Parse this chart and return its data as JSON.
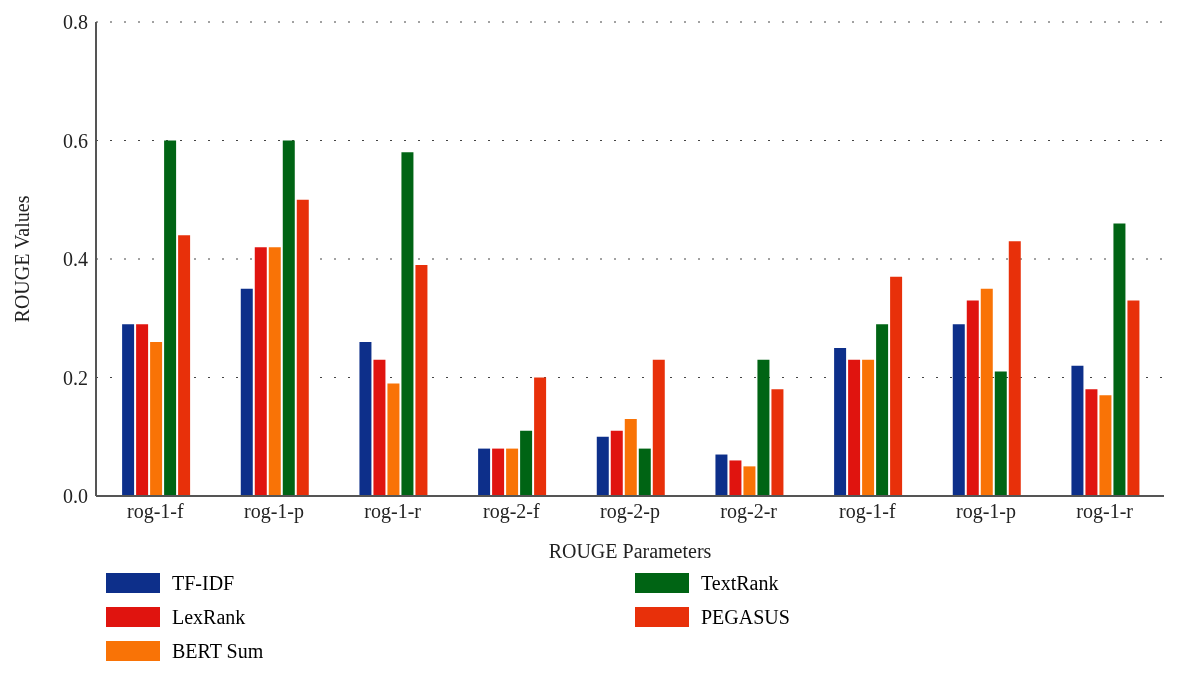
{
  "chart_data": {
    "type": "bar",
    "xlabel": "ROUGE Parameters",
    "ylabel": "ROUGE Values",
    "categories": [
      "rog-1-f",
      "rog-1-p",
      "rog-1-r",
      "rog-2-f",
      "rog-2-p",
      "rog-2-r",
      "rog-1-f",
      "rog-1-p",
      "rog-1-r"
    ],
    "series": [
      {
        "name": "TF-IDF",
        "color": "#0d2f8a",
        "values": [
          0.29,
          0.35,
          0.26,
          0.08,
          0.1,
          0.07,
          0.25,
          0.29,
          0.22
        ]
      },
      {
        "name": "LexRank",
        "color": "#e0140f",
        "values": [
          0.29,
          0.42,
          0.23,
          0.08,
          0.11,
          0.06,
          0.23,
          0.33,
          0.18
        ]
      },
      {
        "name": "BERT Sum",
        "color": "#f97306",
        "values": [
          0.26,
          0.42,
          0.19,
          0.08,
          0.13,
          0.05,
          0.23,
          0.35,
          0.17
        ]
      },
      {
        "name": "TextRank",
        "color": "#006414",
        "values": [
          0.6,
          0.6,
          0.58,
          0.11,
          0.08,
          0.23,
          0.29,
          0.21,
          0.46
        ]
      },
      {
        "name": "PEGASUS",
        "color": "#e8300a",
        "values": [
          0.44,
          0.5,
          0.39,
          0.2,
          0.23,
          0.18,
          0.37,
          0.43,
          0.33
        ]
      }
    ],
    "ylim": [
      0,
      0.8
    ],
    "yticks": [
      {
        "value": 0,
        "label": "0.0"
      },
      {
        "value": 0.2,
        "label": "0.2"
      },
      {
        "value": 0.4,
        "label": "0.4"
      },
      {
        "value": 0.6,
        "label": "0.6"
      },
      {
        "value": 0.8,
        "label": "0.8"
      }
    ],
    "grid": "y",
    "legend": "bottom"
  }
}
